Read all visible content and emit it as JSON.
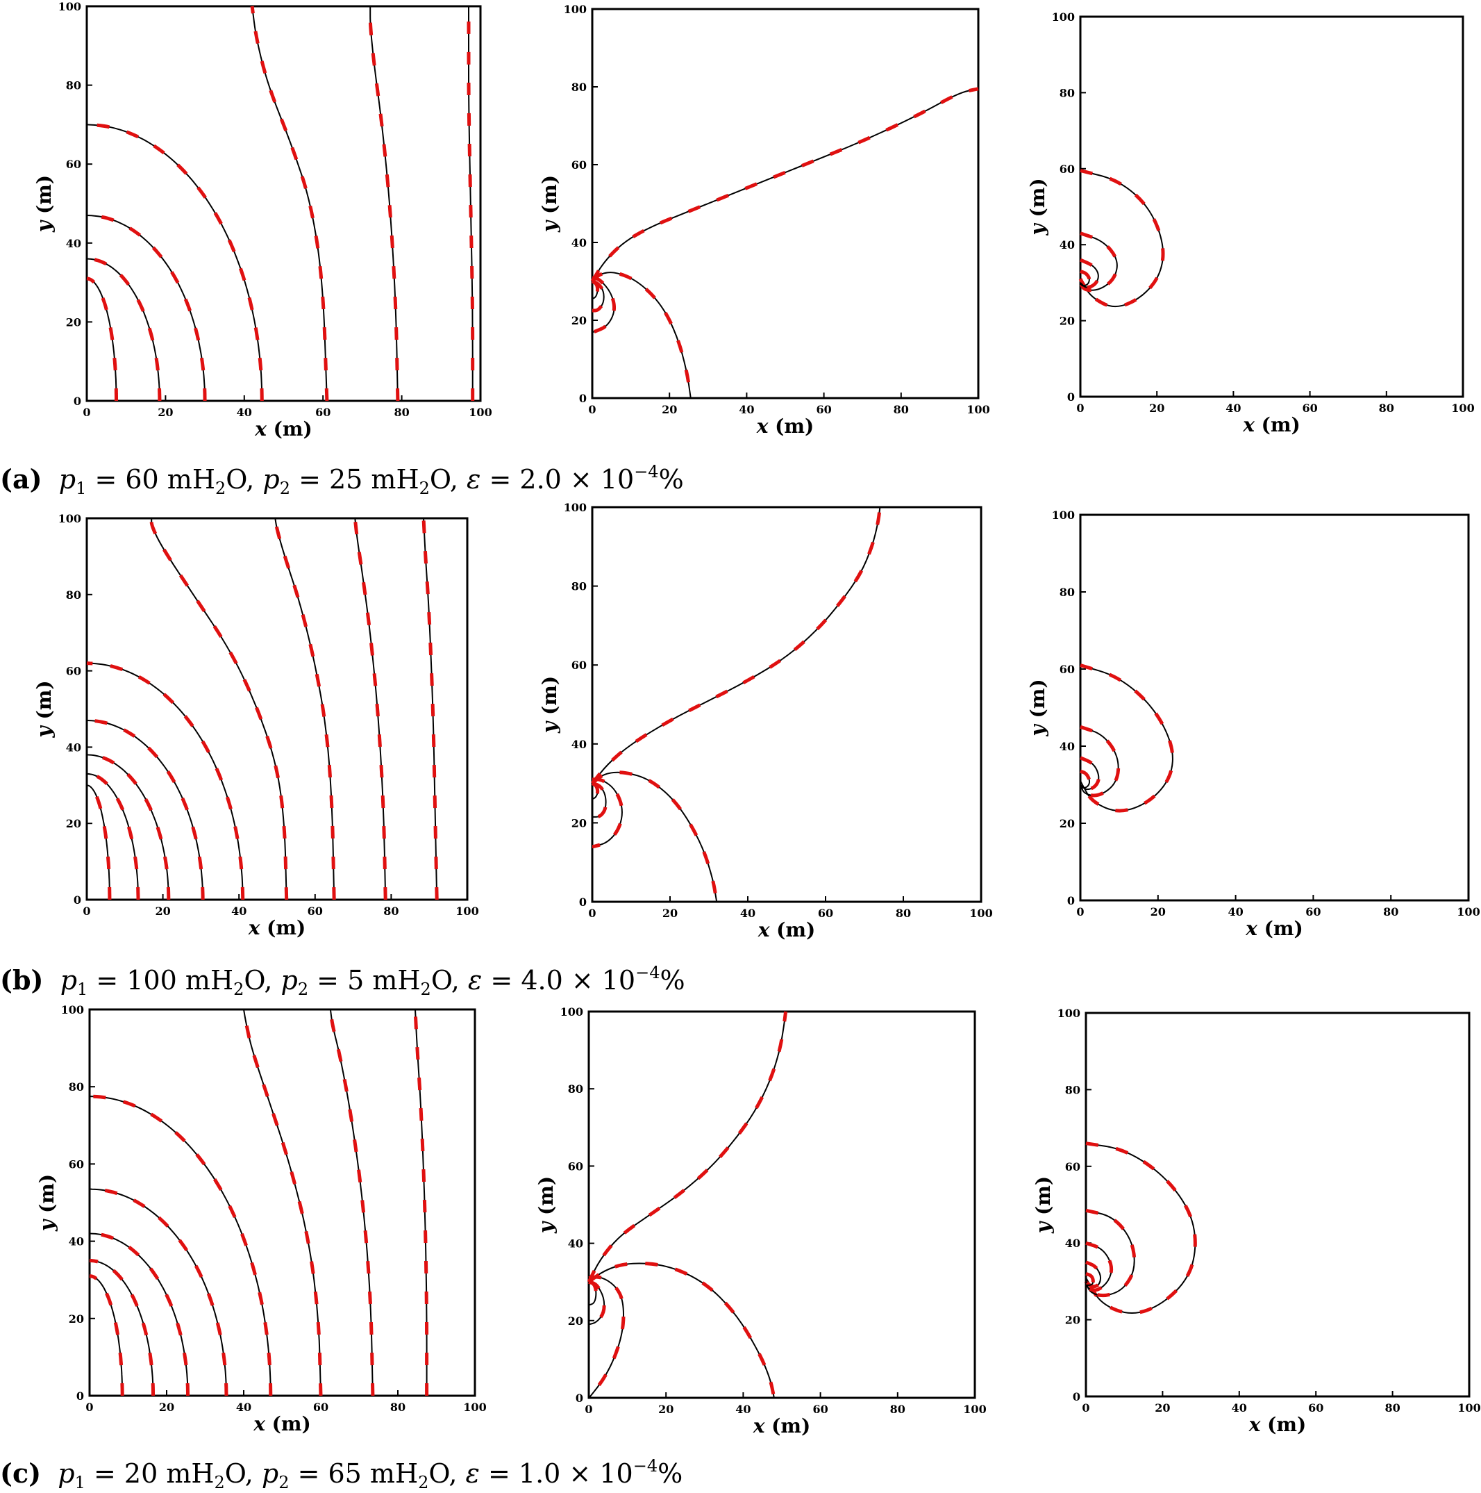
{
  "figure": {
    "rows": [
      {
        "caption": {
          "tag": "(a)",
          "p1_sym": "p",
          "p1_sub": "1",
          "p1_rest": " = 60 mH",
          "p2_sym": "p",
          "p2_sub": "2",
          "p2_rest": " = 25 mH",
          "eps_sym": "ε",
          "eps_rest": " = 2.0 × 10",
          "eps_exp": "−4",
          "pct": "%"
        }
      },
      {
        "caption": {
          "tag": "(b)",
          "p1_sym": "p",
          "p1_sub": "1",
          "p1_rest": " = 100 mH",
          "p2_sym": "p",
          "p2_sub": "2",
          "p2_rest": " = 5 mH",
          "eps_sym": "ε",
          "eps_rest": " = 4.0 × 10",
          "eps_exp": "−4",
          "pct": "%"
        }
      },
      {
        "caption": {
          "tag": "(c)",
          "p1_sym": "p",
          "p1_sub": "1",
          "p1_rest": " = 20 mH",
          "p2_sym": "p",
          "p2_sub": "2",
          "p2_rest": " = 65 mH",
          "eps_sym": "ε",
          "eps_rest": " = 1.0 × 10",
          "eps_exp": "−4",
          "pct": "%"
        }
      }
    ],
    "water_sub": "2",
    "water_end": "O"
  },
  "chart_data": [
    {
      "type": "line",
      "panel": "a-1",
      "xlabel": "x (m)",
      "ylabel": "y (m)",
      "xlim": [
        0,
        100
      ],
      "ylim": [
        0,
        100
      ],
      "xticks": [
        "0",
        "20",
        "40",
        "60",
        "80",
        "100"
      ],
      "yticks": [
        "0",
        "20",
        "40",
        "60",
        "80",
        "100"
      ],
      "series": [
        {
          "kind": "arc",
          "r": 31,
          "xr": 7.5,
          "ys": 100
        },
        {
          "kind": "arc",
          "r": 36,
          "xr": 18.5,
          "ys": 100
        },
        {
          "kind": "arc",
          "r": 47,
          "xr": 30,
          "ys": 100
        },
        {
          "kind": "arc",
          "r": 70,
          "xr": 44.5,
          "ys": 100
        },
        {
          "x": [
            61,
            60,
            57,
            52,
            46,
            43,
            42
          ],
          "y": [
            0,
            30,
            50,
            65,
            80,
            92,
            100
          ]
        },
        {
          "x": [
            79,
            78.5,
            77,
            75,
            73,
            72,
            72
          ],
          "y": [
            0,
            25,
            50,
            70,
            85,
            95,
            100
          ]
        },
        {
          "x": [
            98,
            98,
            97.5,
            97,
            97,
            97
          ],
          "y": [
            0,
            25,
            50,
            75,
            90,
            100
          ]
        }
      ]
    },
    {
      "type": "line",
      "panel": "a-2",
      "xlabel": "x (m)",
      "ylabel": "y (m)",
      "xlim": [
        0,
        100
      ],
      "ylim": [
        0,
        100
      ],
      "xticks": [
        "0",
        "20",
        "40",
        "60",
        "80",
        "100"
      ],
      "yticks": [
        "0",
        "20",
        "40",
        "60",
        "80",
        "100"
      ],
      "series": [
        {
          "x": [
            0,
            3,
            8,
            15,
            25,
            40,
            55,
            70,
            85,
            95,
            100
          ],
          "y": [
            30,
            35,
            40,
            44,
            48,
            54,
            60,
            66,
            73,
            78.5,
            79.5
          ]
        },
        {
          "x": [
            0,
            2,
            6,
            12,
            18,
            22,
            24.5,
            25.5
          ],
          "y": [
            30,
            32,
            32.5,
            30,
            24,
            16,
            7,
            0
          ]
        },
        {
          "x": [
            0,
            2,
            5,
            6,
            4,
            0.5,
            0
          ],
          "y": [
            31,
            30.5,
            27,
            22.5,
            18.5,
            17,
            17
          ]
        },
        {
          "x": [
            0,
            1.5,
            3,
            3,
            1.5,
            0
          ],
          "y": [
            30,
            29.5,
            27.5,
            24.5,
            22.5,
            22.5
          ]
        },
        {
          "x": [
            0,
            1,
            1.5,
            1,
            0
          ],
          "y": [
            30,
            29.5,
            28,
            26,
            25.5
          ]
        }
      ]
    },
    {
      "type": "line",
      "panel": "a-3",
      "xlabel": "x (m)",
      "ylabel": "y (m)",
      "xlim": [
        0,
        100
      ],
      "ylim": [
        0,
        100
      ],
      "xticks": [
        "0",
        "20",
        "40",
        "60",
        "80",
        "100"
      ],
      "yticks": [
        "0",
        "20",
        "40",
        "60",
        "80",
        "100"
      ],
      "series": [
        {
          "x": [
            0,
            10,
            18,
            22,
            21,
            16,
            9,
            3,
            0.5,
            0
          ],
          "y": [
            59.5,
            57,
            50,
            40,
            32,
            26,
            23,
            26,
            30,
            31
          ]
        },
        {
          "x": [
            0,
            6,
            10,
            9,
            5,
            1,
            0
          ],
          "y": [
            43,
            41,
            36,
            31,
            28,
            28,
            30
          ]
        },
        {
          "x": [
            0,
            3.5,
            5,
            4,
            1.5,
            0
          ],
          "y": [
            36,
            34.5,
            32,
            29.5,
            28.5,
            30
          ]
        },
        {
          "x": [
            0,
            1.5,
            2.5,
            2,
            0.5,
            0
          ],
          "y": [
            33,
            32.5,
            31,
            29.5,
            29,
            30
          ]
        }
      ]
    },
    {
      "type": "line",
      "panel": "b-1",
      "xlabel": "x (m)",
      "ylabel": "y (m)",
      "xlim": [
        0,
        100
      ],
      "ylim": [
        0,
        100
      ],
      "xticks": [
        "0",
        "20",
        "40",
        "60",
        "80",
        "100"
      ],
      "yticks": [
        "0",
        "20",
        "40",
        "60",
        "80",
        "100"
      ],
      "series": [
        {
          "kind": "arc",
          "r": 30,
          "xr": 6,
          "ys": 100
        },
        {
          "kind": "arc",
          "r": 33,
          "xr": 13.5,
          "ys": 100
        },
        {
          "kind": "arc",
          "r": 38,
          "xr": 21.5,
          "ys": 100
        },
        {
          "kind": "arc",
          "r": 47,
          "xr": 30.5,
          "ys": 100
        },
        {
          "kind": "arc",
          "r": 62,
          "xr": 41,
          "ys": 100
        },
        {
          "x": [
            52.5,
            52,
            50,
            45,
            38,
            28,
            20,
            17,
            17
          ],
          "y": [
            0,
            20,
            35,
            50,
            65,
            80,
            92,
            98,
            100
          ]
        },
        {
          "x": [
            65,
            64.5,
            63,
            60,
            56,
            52,
            50,
            49.5
          ],
          "y": [
            0,
            25,
            45,
            62,
            78,
            90,
            97,
            100
          ]
        },
        {
          "x": [
            78.5,
            78,
            76.5,
            74.5,
            72.5,
            71,
            70.5
          ],
          "y": [
            0,
            25,
            50,
            70,
            85,
            95,
            100
          ]
        },
        {
          "x": [
            92,
            91.5,
            91,
            90,
            89,
            88.5
          ],
          "y": [
            0,
            25,
            50,
            75,
            90,
            100
          ]
        }
      ]
    },
    {
      "type": "line",
      "panel": "b-2",
      "xlabel": "x (m)",
      "ylabel": "y (m)",
      "xlim": [
        0,
        100
      ],
      "ylim": [
        0,
        100
      ],
      "xticks": [
        "0",
        "20",
        "40",
        "60",
        "80",
        "100"
      ],
      "yticks": [
        "0",
        "20",
        "40",
        "60",
        "80",
        "100"
      ],
      "series": [
        {
          "x": [
            0,
            4,
            10,
            20,
            30,
            40,
            50,
            58,
            64,
            69,
            72,
            73.5,
            74
          ],
          "y": [
            30,
            35,
            40,
            46,
            51,
            56,
            62,
            69,
            76,
            83,
            90,
            96,
            100
          ]
        },
        {
          "x": [
            0,
            3,
            8,
            15,
            22,
            28,
            31,
            32
          ],
          "y": [
            30,
            32.5,
            33,
            31,
            25,
            15,
            6,
            0
          ]
        },
        {
          "x": [
            0,
            2.5,
            6,
            8,
            7,
            4,
            0.5,
            0
          ],
          "y": [
            31,
            31,
            28.5,
            23.5,
            18.5,
            15,
            14,
            14
          ]
        },
        {
          "x": [
            0,
            2,
            3.5,
            3.5,
            2,
            0
          ],
          "y": [
            30,
            29.5,
            27,
            23.5,
            21.5,
            21.5
          ]
        },
        {
          "x": [
            0,
            1,
            1.5,
            1,
            0
          ],
          "y": [
            30,
            29.5,
            28,
            26.5,
            26
          ]
        }
      ]
    },
    {
      "type": "line",
      "panel": "b-3",
      "xlabel": "x (m)",
      "ylabel": "y (m)",
      "xlim": [
        0,
        100
      ],
      "ylim": [
        0,
        100
      ],
      "xticks": [
        "0",
        "20",
        "40",
        "60",
        "80",
        "100"
      ],
      "yticks": [
        "0",
        "20",
        "40",
        "60",
        "80",
        "100"
      ],
      "series": [
        {
          "x": [
            0,
            10,
            19,
            24,
            23.5,
            18,
            10,
            3,
            0.5,
            0
          ],
          "y": [
            61,
            58,
            50,
            40,
            32,
            25.5,
            22.5,
            25.5,
            30,
            31
          ]
        },
        {
          "x": [
            0,
            6,
            10,
            9.5,
            5,
            1,
            0
          ],
          "y": [
            45,
            43,
            37,
            30.5,
            27,
            27.5,
            30
          ]
        },
        {
          "x": [
            0,
            3.5,
            5,
            4,
            1.5,
            0
          ],
          "y": [
            37,
            35.5,
            32,
            29.5,
            28.5,
            30
          ]
        },
        {
          "x": [
            0,
            1.5,
            2.5,
            2,
            0.5,
            0
          ],
          "y": [
            33.5,
            33,
            31,
            29.5,
            29,
            30
          ]
        }
      ]
    },
    {
      "type": "line",
      "panel": "c-1",
      "xlabel": "x (m)",
      "ylabel": "y (m)",
      "xlim": [
        0,
        100
      ],
      "ylim": [
        0,
        100
      ],
      "xticks": [
        "0",
        "20",
        "40",
        "60",
        "80",
        "100"
      ],
      "yticks": [
        "0",
        "20",
        "40",
        "60",
        "80",
        "100"
      ],
      "series": [
        {
          "kind": "arc",
          "r": 31,
          "xr": 8.5,
          "ys": 100
        },
        {
          "kind": "arc",
          "r": 35,
          "xr": 16.5,
          "ys": 100
        },
        {
          "kind": "arc",
          "r": 42,
          "xr": 25.5,
          "ys": 100
        },
        {
          "kind": "arc",
          "r": 53.5,
          "xr": 35.5,
          "ys": 100
        },
        {
          "kind": "arc",
          "r": 77.5,
          "xr": 47,
          "ys": 100
        },
        {
          "x": [
            60,
            59.5,
            57,
            52,
            46,
            42,
            40.5,
            40
          ],
          "y": [
            0,
            20,
            40,
            60,
            78,
            90,
            97,
            100
          ]
        },
        {
          "x": [
            73.5,
            73,
            71,
            68,
            65,
            63,
            62.5
          ],
          "y": [
            0,
            25,
            50,
            72,
            88,
            96,
            100
          ]
        },
        {
          "x": [
            87.5,
            87.5,
            87,
            86,
            85,
            84.5
          ],
          "y": [
            0,
            25,
            50,
            75,
            90,
            100
          ]
        }
      ]
    },
    {
      "type": "line",
      "panel": "c-2",
      "xlabel": "x (m)",
      "ylabel": "y (m)",
      "xlim": [
        0,
        100
      ],
      "ylim": [
        0,
        100
      ],
      "xticks": [
        "0",
        "20",
        "40",
        "60",
        "80",
        "100"
      ],
      "yticks": [
        "0",
        "20",
        "40",
        "60",
        "80",
        "100"
      ],
      "series": [
        {
          "x": [
            0,
            3,
            8,
            16,
            24,
            32,
            38,
            43,
            47,
            49.5,
            50.5,
            51
          ],
          "y": [
            30,
            36,
            42,
            47.5,
            53,
            60,
            67,
            74,
            82,
            90,
            96,
            100
          ]
        },
        {
          "x": [
            0,
            4,
            10,
            20,
            30,
            38,
            44,
            47,
            48
          ],
          "y": [
            30,
            33,
            35,
            34.5,
            30,
            22,
            12,
            5,
            0
          ]
        },
        {
          "x": [
            0,
            3,
            7,
            9,
            9,
            7,
            4,
            0.5,
            0
          ],
          "y": [
            31,
            31.5,
            29,
            25,
            18,
            11,
            5,
            0.5,
            0
          ]
        },
        {
          "x": [
            0,
            2,
            4,
            4,
            2,
            0
          ],
          "y": [
            30,
            29.5,
            26,
            22,
            19.5,
            19
          ]
        },
        {
          "x": [
            0,
            1.5,
            2,
            1.5,
            0
          ],
          "y": [
            30,
            29.5,
            27,
            24.5,
            24
          ]
        }
      ]
    },
    {
      "type": "line",
      "panel": "c-3",
      "xlabel": "x (m)",
      "ylabel": "y (m)",
      "xlim": [
        0,
        100
      ],
      "ylim": [
        0,
        100
      ],
      "xticks": [
        "0",
        "20",
        "40",
        "60",
        "80",
        "100"
      ],
      "yticks": [
        "0",
        "20",
        "40",
        "60",
        "80",
        "100"
      ],
      "series": [
        {
          "x": [
            0,
            10,
            20,
            27,
            29,
            27,
            20,
            12,
            4,
            0.5,
            0
          ],
          "y": [
            66,
            64.5,
            58,
            49,
            40,
            31,
            24,
            21,
            24,
            30,
            31
          ]
        },
        {
          "x": [
            0,
            7,
            12,
            13,
            10,
            5,
            1,
            0
          ],
          "y": [
            48.5,
            47,
            41,
            33.5,
            28,
            26,
            27,
            30
          ]
        },
        {
          "x": [
            0,
            4.5,
            7,
            6,
            3,
            0.5,
            0
          ],
          "y": [
            40,
            38.5,
            34,
            30,
            27.5,
            28,
            30
          ]
        },
        {
          "x": [
            0,
            2.5,
            4,
            3.5,
            1.5,
            0
          ],
          "y": [
            35,
            34,
            31.5,
            29,
            28.5,
            30
          ]
        },
        {
          "x": [
            0,
            1.5,
            2,
            1.5,
            0
          ],
          "y": [
            32,
            31.5,
            30,
            29,
            29
          ]
        }
      ]
    }
  ]
}
